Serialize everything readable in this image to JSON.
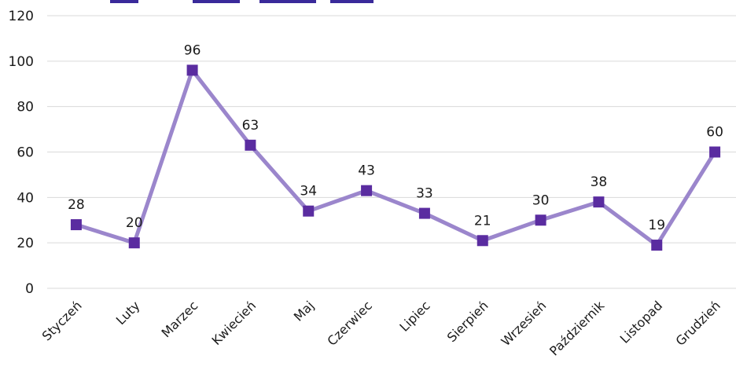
{
  "chart_data": {
    "type": "line",
    "title": "",
    "xlabel": "",
    "ylabel": "",
    "categories": [
      "Styczeń",
      "Luty",
      "Marzec",
      "Kwiecień",
      "Maj",
      "Czerwiec",
      "Lipiec",
      "Sierpień",
      "Wrzesień",
      "Październik",
      "Listopad",
      "Grudzień"
    ],
    "series": [
      {
        "values": [
          28,
          20,
          96,
          63,
          34,
          43,
          33,
          21,
          30,
          38,
          19,
          60
        ]
      }
    ],
    "ylim": [
      0,
      120
    ],
    "yticks": [
      0,
      20,
      40,
      60,
      80,
      100,
      120
    ],
    "grid": true,
    "data_labels": true,
    "legend": "none",
    "colors": {
      "line": "#9b86cc",
      "marker": "#5a2ca0",
      "grid": "#d9d9d9",
      "clipped_title": "#3a2a9a"
    }
  }
}
